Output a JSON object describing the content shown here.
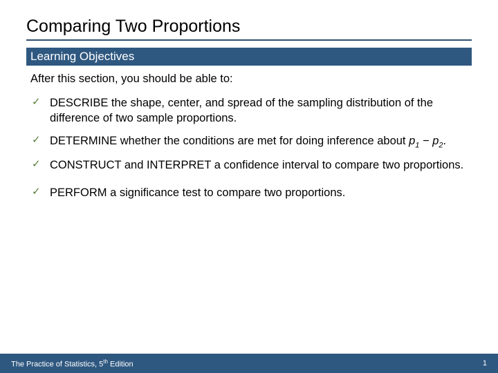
{
  "title": "Comparing Two Proportions",
  "subtitle": "Learning Objectives",
  "intro": "After this section, you should be able to:",
  "objectives": [
    {
      "text": "DESCRIBE the shape, center, and spread of the sampling distribution of the difference of two sample proportions."
    },
    {
      "text": "DETERMINE whether the conditions are met for doing inference about ",
      "expr": "p₁ − p₂."
    },
    {
      "text": "CONSTRUCT and INTERPRET a confidence interval to compare two proportions."
    },
    {
      "text": "PERFORM a significance test to compare two proportions."
    }
  ],
  "footer": {
    "book": "The Practice of Statistics, 5",
    "edition_suffix": "th",
    "edition_tail": " Edition",
    "page": "1"
  },
  "colors": {
    "bar": "#2f5880",
    "rule": "#2f4f6f",
    "check": "#5a7a3a",
    "text": "#000000",
    "bg": "#ffffff"
  }
}
